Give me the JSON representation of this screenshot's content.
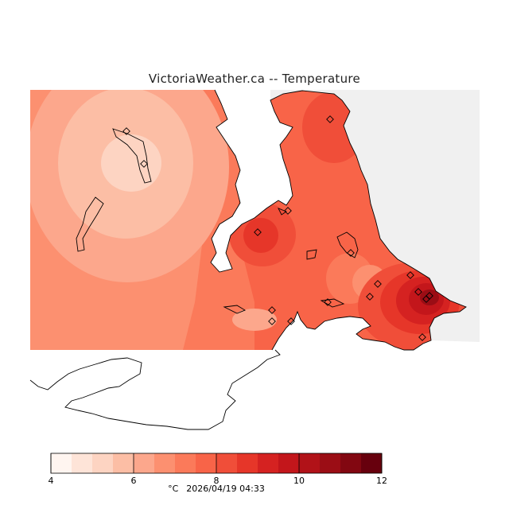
{
  "map": {
    "title": "VictoriaWeather.ca -- Temperature",
    "colors": {
      "land_outside": "#f0f0f0",
      "water": "#ffffff",
      "coast": "#000000"
    },
    "stations_count_visible": 17
  },
  "legend": {
    "unit": "°C",
    "timestamp": "2026/04/19 04:33",
    "range": [
      4,
      12
    ],
    "ticks": [
      {
        "value": 4,
        "label": "4"
      },
      {
        "value": 6,
        "label": "6"
      },
      {
        "value": 8,
        "label": "8"
      },
      {
        "value": 10,
        "label": "10"
      },
      {
        "value": 12,
        "label": "12"
      }
    ],
    "bins": [
      "#fff5f0",
      "#fee4d8",
      "#fdd4c2",
      "#fcbea5",
      "#fca78c",
      "#fc9070",
      "#fb7a5a",
      "#f86448",
      "#f04e39",
      "#e63629",
      "#d52221",
      "#c3161b",
      "#b11218",
      "#9b0d15",
      "#820711",
      "#67000d"
    ]
  }
}
